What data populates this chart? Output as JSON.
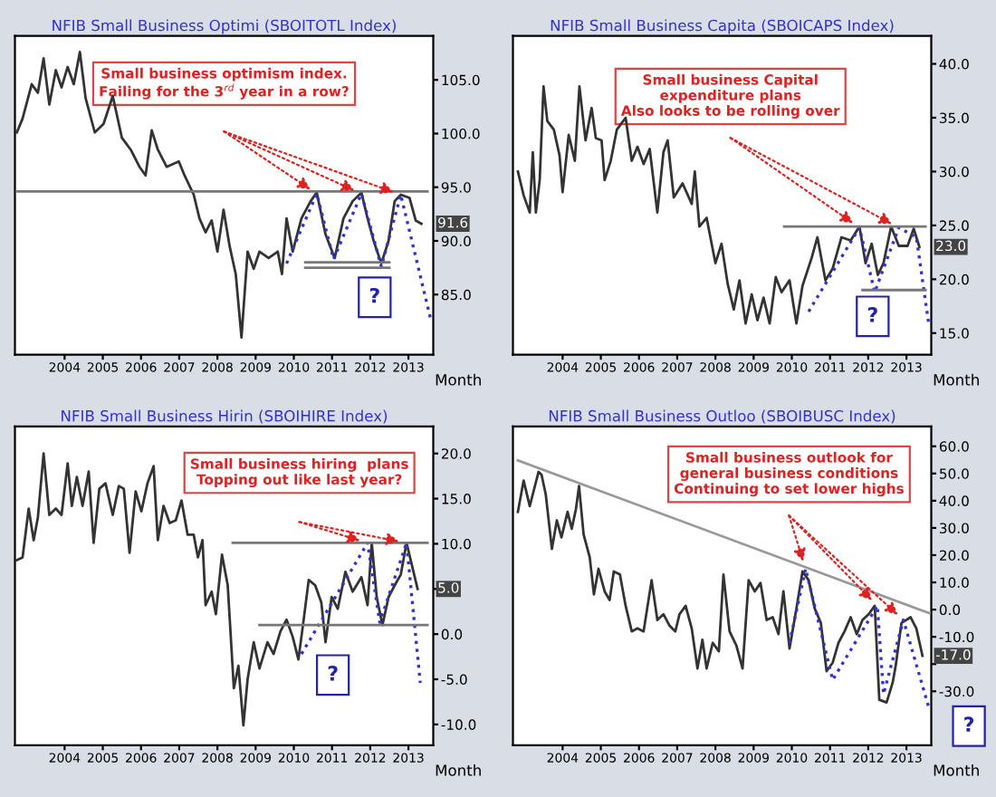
{
  "chart_data": [
    {
      "type": "line",
      "title": "NFIB Small Business Optimi (SBOITOTL Index)",
      "xlabel": "Month",
      "xlim": [
        2003.2,
        2014.15
      ],
      "ylim": [
        79.4,
        109.1
      ],
      "yticks": [
        {
          "value": 85,
          "label": "85.0"
        },
        {
          "value": 90,
          "label": "90.0"
        },
        {
          "value": 95,
          "label": "95.0"
        },
        {
          "value": 100,
          "label": "100.0"
        },
        {
          "value": 105,
          "label": "105.0"
        }
      ],
      "xticks": [
        {
          "value": 2004.5,
          "label": "2004"
        },
        {
          "value": 2005.5,
          "label": "2005"
        },
        {
          "value": 2006.5,
          "label": "2006"
        },
        {
          "value": 2007.5,
          "label": "2007"
        },
        {
          "value": 2008.5,
          "label": "2008"
        },
        {
          "value": 2009.5,
          "label": "2009"
        },
        {
          "value": 2010.5,
          "label": "2010"
        },
        {
          "value": 2011.5,
          "label": "2011"
        },
        {
          "value": 2012.5,
          "label": "2012"
        },
        {
          "value": 2013.5,
          "label": "2013"
        }
      ],
      "series": [
        {
          "type": "line",
          "color": "#333333",
          "line_style": "solid",
          "x": [
            2003.25,
            2003.4,
            2003.64,
            2003.8,
            2003.95,
            2004.1,
            2004.27,
            2004.42,
            2004.58,
            2004.74,
            2004.9,
            2005.05,
            2005.29,
            2005.52,
            2005.76,
            2006.0,
            2006.23,
            2006.46,
            2006.62,
            2006.78,
            2006.94,
            2007.17,
            2007.49,
            2007.64,
            2007.88,
            2008.03,
            2008.19,
            2008.35,
            2008.5,
            2008.66,
            2008.82,
            2008.98,
            2009.13,
            2009.29,
            2009.45,
            2009.6,
            2009.84,
            2010.08,
            2010.19,
            2010.31,
            2010.47,
            2010.7,
            2010.94,
            2011.1,
            2011.33,
            2011.57,
            2011.8,
            2012.04,
            2012.27,
            2012.43,
            2012.59,
            2012.79,
            2012.98,
            2013.14,
            2013.3,
            2013.53,
            2013.69,
            2013.84
          ],
          "values": [
            100.1,
            101.4,
            104.6,
            103.8,
            107.0,
            102.7,
            105.9,
            104.3,
            106.2,
            104.6,
            107.6,
            103.3,
            100.1,
            100.9,
            103.5,
            99.6,
            98.5,
            96.9,
            96.1,
            100.3,
            98.5,
            96.9,
            97.4,
            96.1,
            94.3,
            92.1,
            90.8,
            91.9,
            89.0,
            92.9,
            89.5,
            86.9,
            81.0,
            89.0,
            87.4,
            89.0,
            88.4,
            89.0,
            86.9,
            92.1,
            89.0,
            92.1,
            93.7,
            94.5,
            90.6,
            88.4,
            92.1,
            93.7,
            94.5,
            92.1,
            90.0,
            87.9,
            90.0,
            93.7,
            94.3,
            94.0,
            91.9,
            91.6
          ]
        },
        {
          "type": "line",
          "color": "#3333cc",
          "line_style": "dotted",
          "x": [
            2010.31,
            2011.1,
            2011.54,
            2012.27,
            2012.79,
            2013.3,
            2014.09
          ],
          "values": [
            87.9,
            94.4,
            88.3,
            94.4,
            87.6,
            94.3,
            82.6
          ]
        },
        {
          "type": "line",
          "color": "#777777",
          "line_style": "solid",
          "x": [
            2003.25,
            2014.0
          ],
          "values": [
            94.6,
            94.6
          ]
        },
        {
          "type": "line",
          "color": "#777777",
          "line_style": "solid",
          "x": [
            2010.8,
            2013.0
          ],
          "values": [
            88.0,
            88.0
          ]
        },
        {
          "type": "line",
          "color": "#777777",
          "line_style": "solid",
          "x": [
            2010.8,
            2013.0
          ],
          "values": [
            87.5,
            87.5
          ]
        }
      ],
      "annotations": [
        "Small business optimism index.\nFailing for the 3$^{rd}$ year in a row?",
        "?",
        {
          "text": "91.6",
          "y": 91.6
        }
      ]
    },
    {
      "type": "line",
      "title": "NFIB Small Business Capita (SBOICAPS Index)",
      "xlabel": "Month",
      "xlim": [
        2003.2,
        2014.15
      ],
      "ylim": [
        13.0,
        42.6
      ],
      "yticks": [
        {
          "value": 15,
          "label": "15.0"
        },
        {
          "value": 20,
          "label": "20.0"
        },
        {
          "value": 25,
          "label": "25.0"
        },
        {
          "value": 30,
          "label": "30.0"
        },
        {
          "value": 35,
          "label": "35.0"
        },
        {
          "value": 40,
          "label": "40.0"
        }
      ],
      "xticks": [
        {
          "value": 2004.5,
          "label": "2004"
        },
        {
          "value": 2005.5,
          "label": "2005"
        },
        {
          "value": 2006.5,
          "label": "2006"
        },
        {
          "value": 2007.5,
          "label": "2007"
        },
        {
          "value": 2008.5,
          "label": "2008"
        },
        {
          "value": 2009.5,
          "label": "2009"
        },
        {
          "value": 2010.5,
          "label": "2010"
        },
        {
          "value": 2011.5,
          "label": "2011"
        },
        {
          "value": 2012.5,
          "label": "2012"
        },
        {
          "value": 2013.5,
          "label": "2013"
        }
      ],
      "series": [
        {
          "type": "line",
          "color": "#333333",
          "line_style": "solid",
          "x": [
            2003.33,
            2003.48,
            2003.64,
            2003.72,
            2003.8,
            2003.9,
            2004.0,
            2004.1,
            2004.27,
            2004.42,
            2004.5,
            2004.66,
            2004.82,
            2004.94,
            2005.1,
            2005.26,
            2005.37,
            2005.52,
            2005.6,
            2005.76,
            2005.92,
            2006.15,
            2006.31,
            2006.46,
            2006.62,
            2006.78,
            2006.98,
            2007.14,
            2007.25,
            2007.41,
            2007.64,
            2007.88,
            2007.96,
            2008.08,
            2008.27,
            2008.5,
            2008.66,
            2008.82,
            2008.98,
            2009.13,
            2009.29,
            2009.45,
            2009.6,
            2009.76,
            2009.92,
            2010.08,
            2010.23,
            2010.44,
            2010.62,
            2010.78,
            2011.02,
            2011.17,
            2011.38,
            2011.57,
            2011.8,
            2012.04,
            2012.27,
            2012.43,
            2012.59,
            2012.75,
            2012.9,
            2013.1,
            2013.3,
            2013.53,
            2013.69,
            2013.84
          ],
          "values": [
            30.0,
            27.8,
            26.2,
            31.8,
            26.2,
            29.2,
            37.9,
            34.7,
            33.9,
            31.5,
            28.1,
            33.4,
            31.0,
            37.9,
            32.9,
            35.9,
            33.1,
            32.9,
            29.2,
            31.0,
            33.9,
            35.0,
            31.0,
            32.3,
            30.7,
            32.1,
            26.2,
            31.8,
            32.9,
            27.6,
            28.9,
            27.0,
            30.0,
            24.9,
            25.7,
            21.5,
            23.3,
            19.6,
            17.2,
            19.9,
            15.9,
            18.6,
            16.2,
            18.3,
            15.9,
            20.2,
            18.8,
            19.9,
            15.9,
            19.4,
            22.0,
            23.9,
            19.9,
            21.0,
            23.9,
            23.6,
            24.9,
            21.5,
            23.3,
            20.4,
            21.5,
            24.9,
            23.1,
            23.1,
            24.7,
            23.0
          ]
        },
        {
          "type": "line",
          "color": "#3333cc",
          "line_style": "dotted",
          "x": [
            2010.94,
            2012.27,
            2012.67,
            2013.3,
            2013.76,
            2014.09
          ],
          "values": [
            17.0,
            24.8,
            18.8,
            24.8,
            23.9,
            15.7
          ]
        },
        {
          "type": "line",
          "color": "#777777",
          "line_style": "solid",
          "x": [
            2010.3,
            2014.0
          ],
          "values": [
            24.9,
            24.9
          ]
        },
        {
          "type": "line",
          "color": "#777777",
          "line_style": "solid",
          "x": [
            2012.35,
            2014.0
          ],
          "values": [
            19.0,
            19.0
          ]
        }
      ],
      "annotations": [
        "Small business Capital\nexpenditure plans\nAlso looks to be rolling over",
        "?",
        {
          "text": "23.0",
          "y": 23.0
        }
      ]
    },
    {
      "type": "line",
      "title": "NFIB Small Business Hirin (SBOIHIRE Index)",
      "xlabel": "Month",
      "xlim": [
        2003.2,
        2014.15
      ],
      "ylim": [
        -12.3,
        23.0
      ],
      "yticks": [
        {
          "value": -10,
          "label": "-10.0"
        },
        {
          "value": -5,
          "label": "-5.0"
        },
        {
          "value": 0,
          "label": "0.0"
        },
        {
          "value": 5,
          "label": null
        },
        {
          "value": 10,
          "label": "10.0"
        },
        {
          "value": 15,
          "label": "15.0"
        },
        {
          "value": 20,
          "label": "20.0"
        }
      ],
      "xticks": [
        {
          "value": 2004.5,
          "label": "2004"
        },
        {
          "value": 2005.5,
          "label": "2005"
        },
        {
          "value": 2006.5,
          "label": "2006"
        },
        {
          "value": 2007.5,
          "label": "2007"
        },
        {
          "value": 2008.5,
          "label": "2008"
        },
        {
          "value": 2009.5,
          "label": "2009"
        },
        {
          "value": 2010.5,
          "label": "2010"
        },
        {
          "value": 2011.5,
          "label": "2011"
        },
        {
          "value": 2012.5,
          "label": "2012"
        },
        {
          "value": 2013.5,
          "label": "2013"
        }
      ],
      "series": [
        {
          "type": "line",
          "color": "#333333",
          "line_style": "solid",
          "x": [
            2003.25,
            2003.4,
            2003.56,
            2003.69,
            2003.8,
            2003.95,
            2004.1,
            2004.27,
            2004.42,
            2004.58,
            2004.69,
            2004.82,
            2004.97,
            2005.13,
            2005.26,
            2005.41,
            2005.57,
            2005.76,
            2005.92,
            2006.05,
            2006.2,
            2006.36,
            2006.51,
            2006.67,
            2006.83,
            2006.94,
            2007.09,
            2007.25,
            2007.41,
            2007.56,
            2007.72,
            2007.88,
            2007.99,
            2008.11,
            2008.19,
            2008.35,
            2008.46,
            2008.62,
            2008.77,
            2008.93,
            2009.05,
            2009.18,
            2009.29,
            2009.45,
            2009.6,
            2009.81,
            2009.97,
            2010.15,
            2010.31,
            2010.47,
            2010.62,
            2010.74,
            2010.89,
            2011.06,
            2011.22,
            2011.33,
            2011.49,
            2011.65,
            2011.85,
            2012.04,
            2012.27,
            2012.43,
            2012.54,
            2012.67,
            2012.82,
            2012.98,
            2013.14,
            2013.3,
            2013.45,
            2013.61,
            2013.74
          ],
          "values": [
            8.2,
            8.5,
            13.9,
            10.4,
            12.9,
            20.0,
            13.2,
            13.9,
            13.2,
            18.9,
            14.2,
            17.4,
            14.2,
            18.0,
            10.1,
            16.1,
            16.7,
            13.2,
            16.4,
            16.1,
            9.0,
            15.8,
            13.6,
            16.7,
            18.6,
            10.4,
            14.2,
            12.3,
            12.6,
            14.8,
            11.0,
            11.0,
            8.5,
            10.4,
            3.2,
            4.7,
            2.2,
            8.8,
            5.4,
            -6.0,
            -3.5,
            -10.1,
            -5.0,
            -0.9,
            -3.8,
            -0.9,
            -2.2,
            0.3,
            1.6,
            -0.3,
            -2.8,
            1.0,
            6.0,
            5.4,
            3.5,
            -0.9,
            4.1,
            2.8,
            6.9,
            4.7,
            6.3,
            3.2,
            10.1,
            4.1,
            1.0,
            4.1,
            5.4,
            6.6,
            10.1,
            7.3,
            5.0
          ]
        },
        {
          "type": "line",
          "color": "#3333cc",
          "line_style": "dotted",
          "x": [
            2010.7,
            2012.43,
            2012.75,
            2013.45,
            2013.81
          ],
          "values": [
            -2.2,
            10.1,
            1.3,
            10.1,
            -5.4
          ]
        },
        {
          "type": "line",
          "color": "#777777",
          "line_style": "solid",
          "x": [
            2008.9,
            2014.0
          ],
          "values": [
            10.1,
            10.1
          ]
        },
        {
          "type": "line",
          "color": "#777777",
          "line_style": "solid",
          "x": [
            2009.6,
            2014.0
          ],
          "values": [
            1.0,
            1.0
          ]
        }
      ],
      "annotations": [
        "Small business hiring  plans\nTopping out like last year?",
        "?",
        {
          "text": "5.0",
          "y": 5.0
        }
      ]
    },
    {
      "type": "line",
      "title": "NFIB Small Business Outloo (SBOIBUSC Index)",
      "xlabel": "Month",
      "xlim": [
        2003.2,
        2014.15
      ],
      "ylim": [
        -49.8,
        67.3
      ],
      "yticks": [
        {
          "value": -30,
          "label": "-30.0"
        },
        {
          "value": -20,
          "label": null
        },
        {
          "value": -10,
          "label": "-10.0"
        },
        {
          "value": 0,
          "label": "0.0"
        },
        {
          "value": 10,
          "label": "10.0"
        },
        {
          "value": 20,
          "label": "20.0"
        },
        {
          "value": 30,
          "label": "30.0"
        },
        {
          "value": 40,
          "label": "40.0"
        },
        {
          "value": 50,
          "label": "50.0"
        },
        {
          "value": 60,
          "label": "60.0"
        }
      ],
      "xticks": [
        {
          "value": 2004.5,
          "label": "2004"
        },
        {
          "value": 2005.5,
          "label": "2005"
        },
        {
          "value": 2006.5,
          "label": "2006"
        },
        {
          "value": 2007.5,
          "label": "2007"
        },
        {
          "value": 2008.5,
          "label": "2008"
        },
        {
          "value": 2009.5,
          "label": "2009"
        },
        {
          "value": 2010.5,
          "label": "2010"
        },
        {
          "value": 2011.5,
          "label": "2011"
        },
        {
          "value": 2012.5,
          "label": "2012"
        },
        {
          "value": 2013.5,
          "label": "2013"
        }
      ],
      "series": [
        {
          "type": "line",
          "color": "#333333",
          "line_style": "solid",
          "x": [
            2003.33,
            2003.48,
            2003.64,
            2003.87,
            2003.95,
            2004.06,
            2004.22,
            2004.35,
            2004.47,
            2004.63,
            2004.74,
            2004.85,
            2004.93,
            2005.05,
            2005.21,
            2005.32,
            2005.44,
            2005.6,
            2005.73,
            2005.84,
            2006.0,
            2006.15,
            2006.31,
            2006.46,
            2006.62,
            2006.83,
            2006.98,
            2007.14,
            2007.3,
            2007.45,
            2007.56,
            2007.72,
            2007.88,
            2008.03,
            2008.16,
            2008.27,
            2008.43,
            2008.59,
            2008.71,
            2008.87,
            2009.05,
            2009.21,
            2009.37,
            2009.53,
            2009.68,
            2009.84,
            2010.0,
            2010.15,
            2010.28,
            2010.44,
            2010.62,
            2010.78,
            2010.94,
            2011.1,
            2011.26,
            2011.41,
            2011.57,
            2011.72,
            2011.88,
            2012.04,
            2012.2,
            2012.35,
            2012.51,
            2012.67,
            2012.79,
            2012.98,
            2013.14,
            2013.22,
            2013.37,
            2013.61,
            2013.76,
            2013.92
          ],
          "values": [
            35.9,
            47.4,
            38.0,
            50.6,
            49.5,
            42.2,
            22.3,
            32.8,
            26.5,
            35.9,
            29.7,
            37.0,
            45.4,
            27.6,
            19.2,
            5.6,
            15.0,
            6.7,
            3.5,
            14.0,
            12.9,
            1.4,
            -8.0,
            -6.9,
            -8.0,
            10.8,
            -3.8,
            -1.7,
            -5.9,
            -8.0,
            -1.7,
            1.4,
            -6.9,
            -21.6,
            -11.1,
            -21.6,
            -12.2,
            -15.3,
            12.9,
            -8.0,
            -13.2,
            -21.6,
            10.8,
            6.7,
            9.8,
            -3.8,
            -2.8,
            -9.0,
            6.7,
            -14.3,
            0.4,
            14.0,
            10.8,
            0.4,
            -4.9,
            -22.6,
            -19.5,
            -12.2,
            -8.0,
            -2.8,
            -9.0,
            -3.8,
            -1.7,
            1.4,
            -33.1,
            -34.1,
            -26.8,
            -20.5,
            -4.9,
            -2.8,
            -6.9,
            -17.0
          ]
        },
        {
          "type": "line",
          "color": "#3333cc",
          "line_style": "dotted",
          "x": [
            2010.44,
            2010.86,
            2011.57,
            2012.74,
            2012.9,
            2013.42,
            2014.09
          ],
          "values": [
            -12.2,
            15.0,
            -25.8,
            1.4,
            -31.0,
            -3.8,
            -36.2
          ]
        },
        {
          "type": "line",
          "color": "#999999",
          "line_style": "solid",
          "x": [
            2003.33,
            2014.1
          ],
          "values": [
            54.8,
            -1.3
          ]
        }
      ],
      "annotations": [
        "Small business outlook for\ngeneral business conditions\nContinuing to set lower highs",
        "?",
        {
          "text": "-17.0",
          "y": -17.0
        }
      ]
    }
  ]
}
